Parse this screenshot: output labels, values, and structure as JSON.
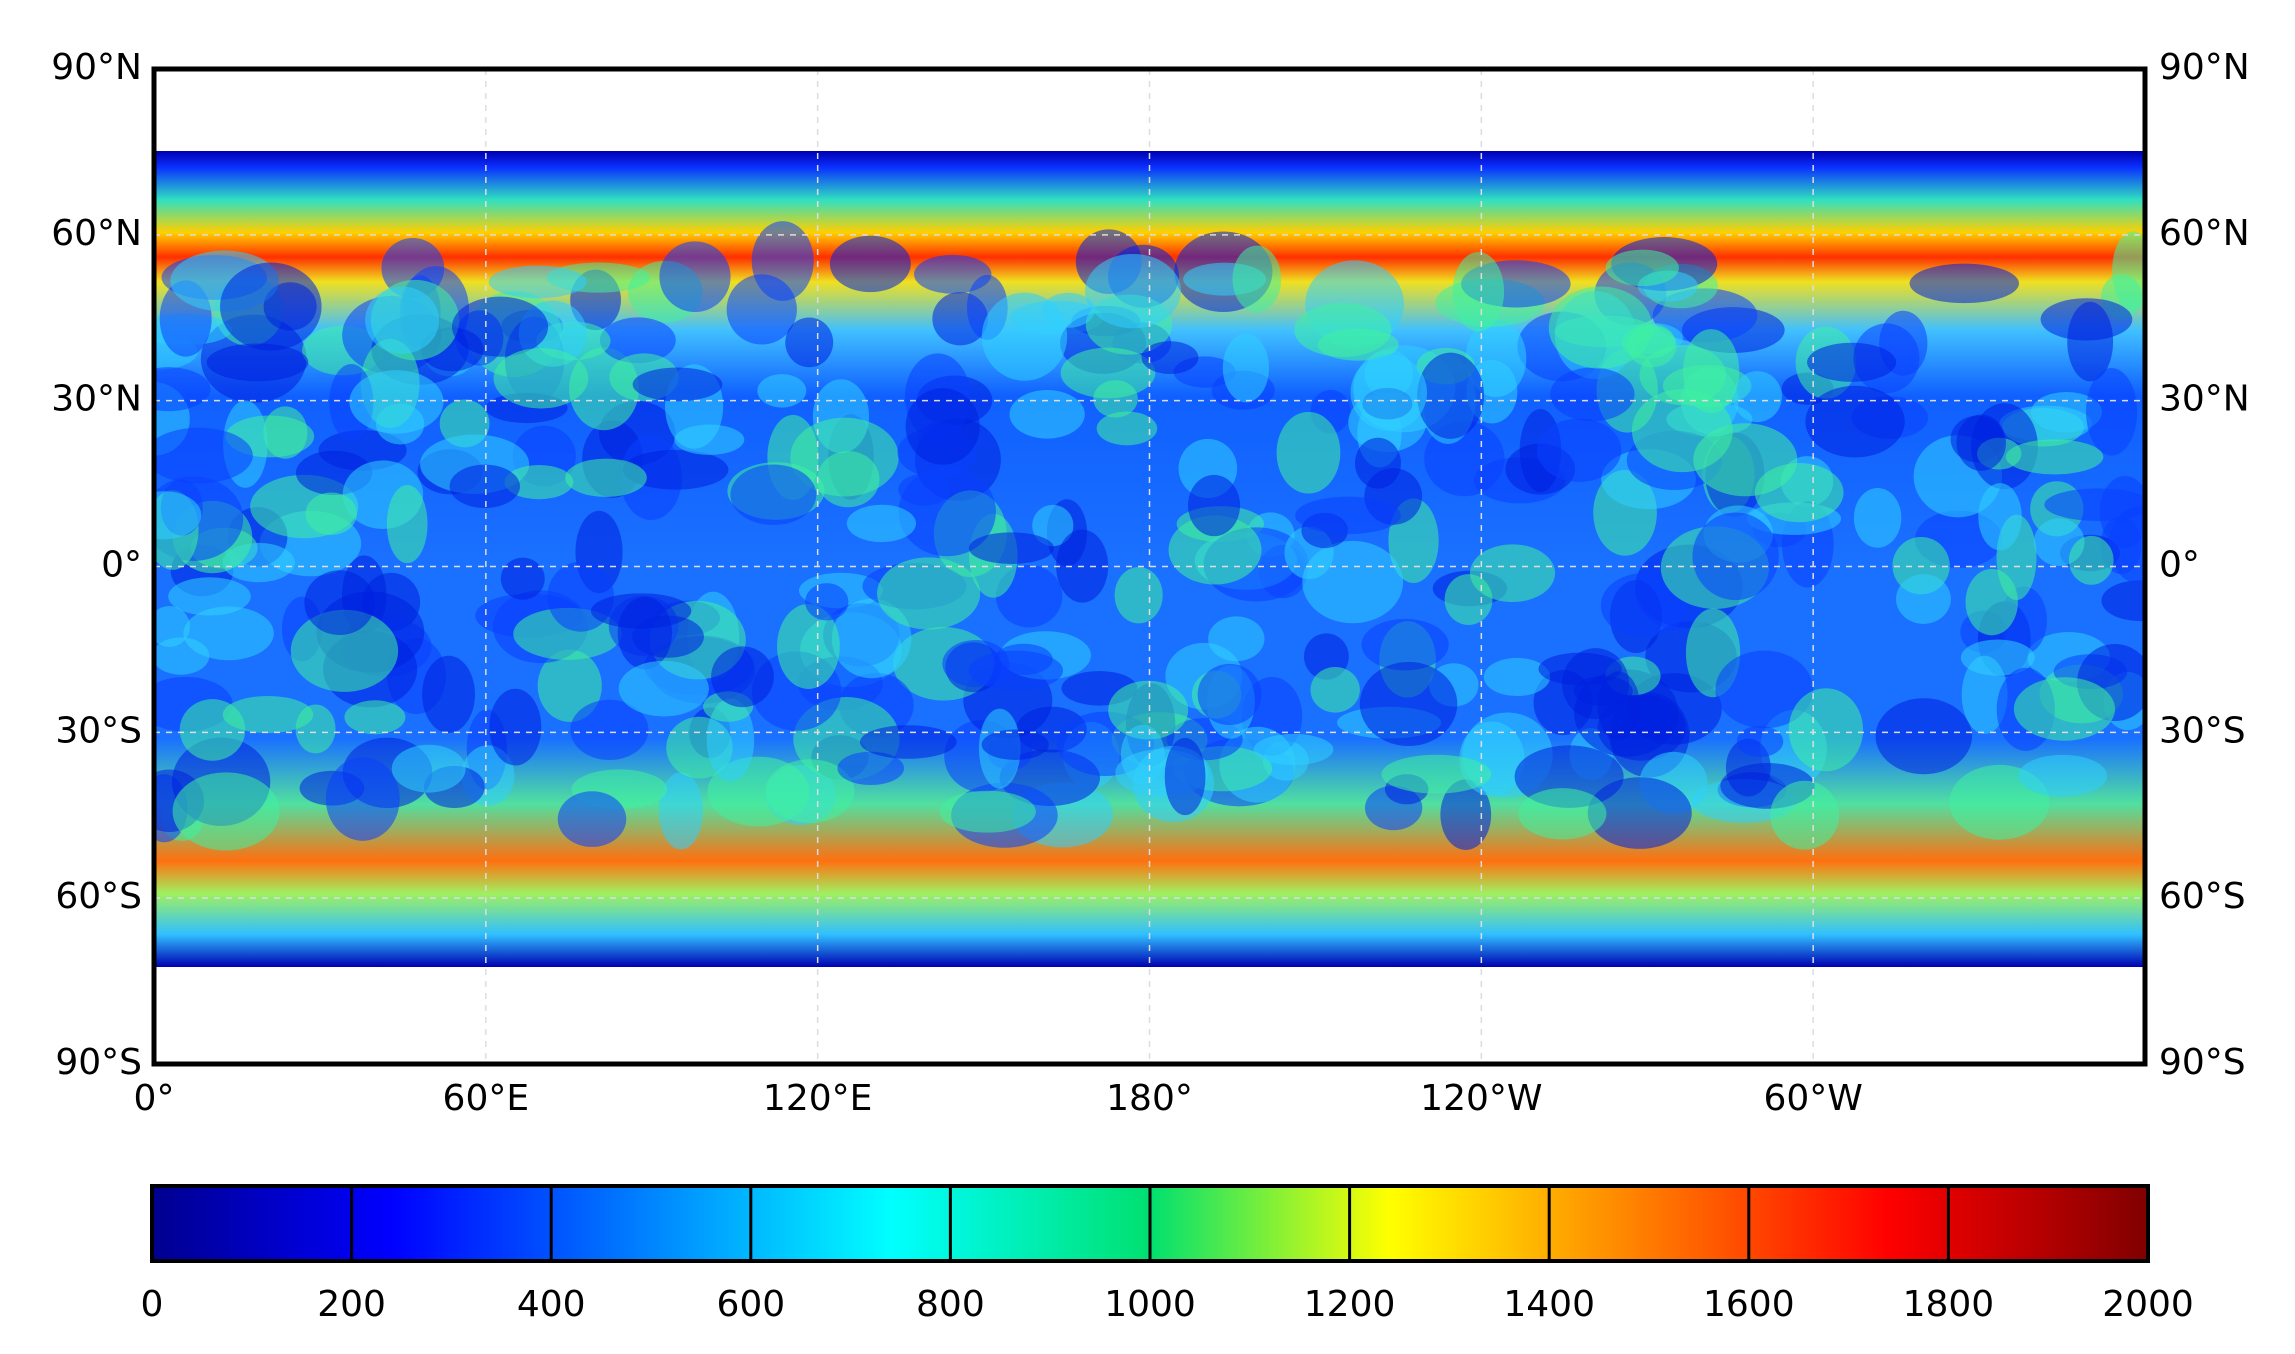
{
  "map": {
    "lat_ticks": [
      {
        "value": 90,
        "label": "90°N"
      },
      {
        "value": 60,
        "label": "60°N"
      },
      {
        "value": 30,
        "label": "30°N"
      },
      {
        "value": 0,
        "label": "0°"
      },
      {
        "value": -30,
        "label": "30°S"
      },
      {
        "value": -60,
        "label": "60°S"
      },
      {
        "value": -90,
        "label": "90°S"
      }
    ],
    "lon_ticks": [
      {
        "value": 0,
        "label": "0°"
      },
      {
        "value": 60,
        "label": "60°E"
      },
      {
        "value": 120,
        "label": "120°E"
      },
      {
        "value": 180,
        "label": "180°"
      },
      {
        "value": 240,
        "label": "120°W"
      },
      {
        "value": 300,
        "label": "60°W"
      }
    ],
    "lonlim": [
      0,
      360
    ],
    "latlim": [
      -90,
      90
    ]
  },
  "colorbar": {
    "lim": [
      0,
      2000
    ],
    "ticks": [
      0,
      200,
      400,
      600,
      800,
      1000,
      1200,
      1400,
      1600,
      1800,
      2000
    ],
    "colormap": "jet"
  }
}
